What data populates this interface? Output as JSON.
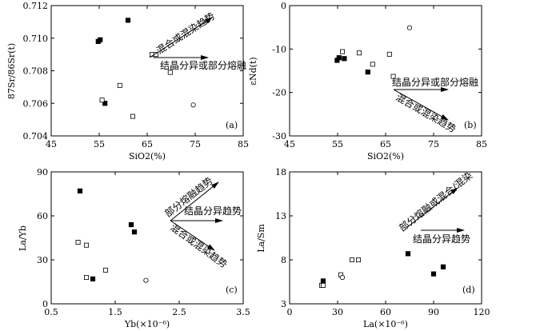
{
  "chart_data": [
    {
      "type": "scatter",
      "panel": "(a)",
      "xlabel": "SiO2(%)",
      "ylabel": "87Sr/86Sr(t)",
      "xlim": [
        45,
        85
      ],
      "ylim": [
        0.704,
        0.712
      ],
      "xticks": [
        "45",
        "55",
        "65",
        "75",
        "85"
      ],
      "yticks": [
        "0.704",
        "0.706",
        "0.708",
        "0.710",
        "0.712"
      ],
      "series": [
        {
          "marker": "filled-square",
          "points": [
            [
              54.8,
              0.7098
            ],
            [
              55.2,
              0.7099
            ],
            [
              56.2,
              0.706
            ],
            [
              61.0,
              0.7111
            ]
          ]
        },
        {
          "marker": "open-square",
          "points": [
            [
              55.6,
              0.7062
            ],
            [
              59.3,
              0.7071
            ],
            [
              62.0,
              0.7052
            ],
            [
              66.0,
              0.709
            ],
            [
              66.8,
              0.709
            ],
            [
              69.8,
              0.7079
            ]
          ]
        },
        {
          "marker": "open-circle",
          "points": [
            [
              74.6,
              0.7059
            ]
          ]
        }
      ],
      "annotations": [
        "混合或混染趋势",
        "结晶分异或部分熔融"
      ]
    },
    {
      "type": "scatter",
      "panel": "(b)",
      "xlabel": "SiO2(%)",
      "ylabel": "εNd(t)",
      "xlim": [
        45,
        85
      ],
      "ylim": [
        -30,
        0
      ],
      "xticks": [
        "45",
        "55",
        "65",
        "75",
        "85"
      ],
      "yticks": [
        "-30",
        "-20",
        "-10",
        "0"
      ],
      "series": [
        {
          "marker": "filled-square",
          "points": [
            [
              54.9,
              -12.6
            ],
            [
              55.3,
              -12.0
            ],
            [
              56.4,
              -12.2
            ],
            [
              61.3,
              -15.3
            ]
          ]
        },
        {
          "marker": "open-square",
          "points": [
            [
              56.0,
              -10.6
            ],
            [
              59.5,
              -10.9
            ],
            [
              62.3,
              -13.5
            ],
            [
              65.8,
              -11.2
            ],
            [
              66.6,
              -16.3
            ]
          ]
        },
        {
          "marker": "open-circle",
          "points": [
            [
              70.0,
              -5.1
            ]
          ]
        }
      ],
      "annotations": [
        "结晶分异或部分熔融",
        "混合或混染趋势"
      ]
    },
    {
      "type": "scatter",
      "panel": "(c)",
      "xlabel": "Yb(×10⁻⁶)",
      "ylabel": "La/Yb",
      "xlim": [
        0.5,
        3.5
      ],
      "ylim": [
        0,
        90
      ],
      "xticks": [
        "0.5",
        "1.5",
        "2.5",
        "3.5"
      ],
      "yticks": [
        "0",
        "30",
        "60",
        "90"
      ],
      "series": [
        {
          "marker": "filled-square",
          "points": [
            [
              0.95,
              77
            ],
            [
              1.15,
              17
            ],
            [
              1.75,
              54
            ],
            [
              1.8,
              49
            ]
          ]
        },
        {
          "marker": "open-square",
          "points": [
            [
              0.92,
              42
            ],
            [
              1.05,
              40
            ],
            [
              1.05,
              18
            ],
            [
              1.35,
              23
            ]
          ]
        },
        {
          "marker": "open-circle",
          "points": [
            [
              1.98,
              16
            ]
          ]
        }
      ],
      "annotations": [
        "部分熔融趋势",
        "结晶分异趋势",
        "混合或混染趋势"
      ]
    },
    {
      "type": "scatter",
      "panel": "(d)",
      "xlabel": "La(×10⁻⁶)",
      "ylabel": "La/Sm",
      "xlim": [
        0,
        120
      ],
      "ylim": [
        3,
        18
      ],
      "xticks": [
        "0",
        "30",
        "60",
        "90",
        "120"
      ],
      "yticks": [
        "3",
        "8",
        "13",
        "18"
      ],
      "series": [
        {
          "marker": "filled-square",
          "points": [
            [
              21,
              5.6
            ],
            [
              74,
              8.7
            ],
            [
              90,
              6.4
            ],
            [
              96,
              7.2
            ]
          ]
        },
        {
          "marker": "open-square",
          "points": [
            [
              20,
              5.1
            ],
            [
              21,
              5.1
            ],
            [
              32,
              6.3
            ],
            [
              39,
              8.0
            ],
            [
              43,
              8.0
            ]
          ]
        },
        {
          "marker": "open-circle",
          "points": [
            [
              33,
              6.0
            ]
          ]
        }
      ],
      "annotations": [
        "部分熔融或混合/混染",
        "结晶分异趋势"
      ]
    }
  ]
}
